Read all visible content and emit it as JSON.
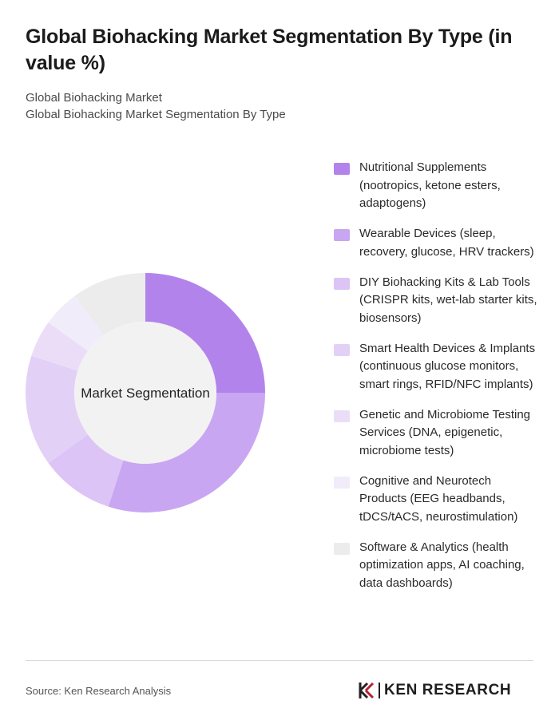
{
  "header": {
    "title": "Global Biohacking Market Segmentation By Type (in value %)",
    "subtitle_1": "Global Biohacking Market",
    "subtitle_2": "Global Biohacking Market Segmentation By Type"
  },
  "chart_data": {
    "type": "pie",
    "style": "donut",
    "center_label": "Market Segmentation",
    "legend_placement": "right",
    "categories": [
      "Nutritional Supplements (nootropics, ketone esters, adaptogens)",
      "Wearable Devices (sleep, recovery, glucose, HRV trackers)",
      "DIY Biohacking Kits & Lab Tools (CRISPR kits, wet-lab starter kits, biosensors)",
      "Smart Health Devices & Implants (continuous glucose monitors, smart rings, RFID/NFC implants)",
      "Genetic and Microbiome Testing Services (DNA, epigenetic, microbiome tests)",
      "Cognitive and Neurotech Products (EEG headbands, tDCS/tACS, neurostimulation)",
      "Software & Analytics (health optimization apps, AI coaching, data dashboards)"
    ],
    "values": [
      25,
      30,
      10,
      15,
      5,
      5,
      10
    ],
    "colors": [
      "#b383ec",
      "#c9a6f2",
      "#dcc4f6",
      "#e3d0f7",
      "#ebddf8",
      "#f1ecfa",
      "#ececec"
    ]
  },
  "footer": {
    "source": "Source: Ken Research Analysis",
    "brand": "KEN RESEARCH"
  }
}
